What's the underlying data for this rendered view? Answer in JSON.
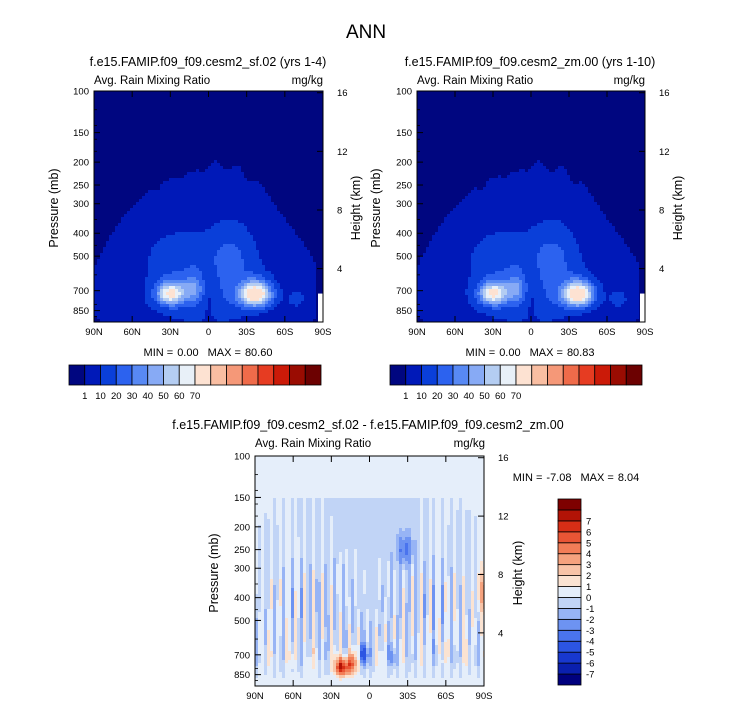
{
  "page": {
    "title": "ANN"
  },
  "scales": {
    "full_levels": [
      1,
      10,
      20,
      30,
      40,
      50,
      60,
      70
    ],
    "full_colors": [
      "#000680",
      "#0019b8",
      "#0a3fd9",
      "#2c62ef",
      "#5889f4",
      "#87aaf5",
      "#b4cdf2",
      "#e8f0f8",
      "#fde2d2",
      "#f9bea2",
      "#f59878",
      "#ef6b4a",
      "#e63c22",
      "#cb1a08",
      "#9a0c02",
      "#6c0101"
    ],
    "diff_levels": [
      -7,
      -6,
      -5,
      -4,
      -3,
      -2,
      -1,
      0,
      1,
      2,
      3,
      4,
      5,
      6,
      7
    ],
    "diff_colors": [
      "#00007e",
      "#0a1fae",
      "#1838cf",
      "#2c55e3",
      "#4a74ee",
      "#6d93f2",
      "#97b4f5",
      "#c1d4f6",
      "#e5eefa",
      "#fbe3d2",
      "#f8c4a8",
      "#f5a27e",
      "#f27d57",
      "#e95535",
      "#d72e16",
      "#b21306",
      "#7e0100"
    ]
  },
  "chart_data": [
    {
      "type": "contour",
      "id": "panel-1",
      "title": "f.e15.FAMIP.f09_f09.cesm2_sf.02 (yrs 1-4)",
      "left_label": "Avg. Rain Mixing Ratio",
      "right_label": "mg/kg",
      "ylabel": "Pressure (mb)",
      "ylabel_right": "Height (km)",
      "x_ticks": [
        "90N",
        "60N",
        "30N",
        "0",
        "30S",
        "60S",
        "90S"
      ],
      "x_range": [
        90,
        -90
      ],
      "y_ticks": [
        100,
        150,
        200,
        250,
        300,
        400,
        500,
        700,
        850
      ],
      "y_range": [
        100,
        950
      ],
      "height_ticks": [
        {
          "km": 4,
          "label": "4"
        },
        {
          "km": 8,
          "label": "8"
        },
        {
          "km": 12,
          "label": "12"
        },
        {
          "km": 16,
          "label": "16"
        }
      ],
      "min_label": "MIN =",
      "min_value": "0.00",
      "max_label": "MAX =",
      "max_value": "80.60",
      "peaks": [
        {
          "lat": -37,
          "p": 725,
          "value": 80.6
        },
        {
          "lat": 30,
          "p": 720,
          "value": 62
        }
      ]
    },
    {
      "type": "contour",
      "id": "panel-2",
      "title": "f.e15.FAMIP.f09_f09.cesm2_zm.00 (yrs 1-10)",
      "left_label": "Avg. Rain Mixing Ratio",
      "right_label": "mg/kg",
      "ylabel": "Pressure (mb)",
      "ylabel_right": "Height (km)",
      "x_ticks": [
        "90N",
        "60N",
        "30N",
        "0",
        "30S",
        "60S",
        "90S"
      ],
      "x_range": [
        90,
        -90
      ],
      "y_ticks": [
        100,
        150,
        200,
        250,
        300,
        400,
        500,
        700,
        850
      ],
      "y_range": [
        100,
        950
      ],
      "height_ticks": [
        {
          "km": 4,
          "label": "4"
        },
        {
          "km": 8,
          "label": "8"
        },
        {
          "km": 12,
          "label": "12"
        },
        {
          "km": 16,
          "label": "16"
        }
      ],
      "min_label": "MIN =",
      "min_value": "0.00",
      "max_label": "MAX =",
      "max_value": "80.83",
      "peaks": [
        {
          "lat": -37,
          "p": 725,
          "value": 80.8
        },
        {
          "lat": 30,
          "p": 720,
          "value": 61
        }
      ]
    },
    {
      "type": "contour",
      "id": "panel-diff",
      "title": "f.e15.FAMIP.f09_f09.cesm2_sf.02 - f.e15.FAMIP.f09_f09.cesm2_zm.00",
      "left_label": "Avg. Rain Mixing Ratio",
      "right_label": "mg/kg",
      "ylabel": "Pressure (mb)",
      "ylabel_right": "Height (km)",
      "x_ticks": [
        "90N",
        "60N",
        "30N",
        "0",
        "30S",
        "60S",
        "90S"
      ],
      "x_range": [
        90,
        -90
      ],
      "y_ticks": [
        100,
        150,
        200,
        250,
        300,
        400,
        500,
        700,
        850
      ],
      "y_range": [
        100,
        950
      ],
      "height_ticks": [
        {
          "km": 4,
          "label": "4"
        },
        {
          "km": 8,
          "label": "8"
        },
        {
          "km": 12,
          "label": "12"
        },
        {
          "km": 16,
          "label": "16"
        }
      ],
      "min_label": "MIN =",
      "min_value": "-7.08",
      "max_label": "MAX =",
      "max_value": "8.04",
      "features": [
        {
          "lat": 22,
          "p": 780,
          "value": 7.5
        },
        {
          "lat": -90,
          "p": 380,
          "value": 4
        },
        {
          "lat": 5,
          "p": 700,
          "value": -4
        },
        {
          "lat": -28,
          "p": 250,
          "value": -3
        }
      ]
    }
  ]
}
